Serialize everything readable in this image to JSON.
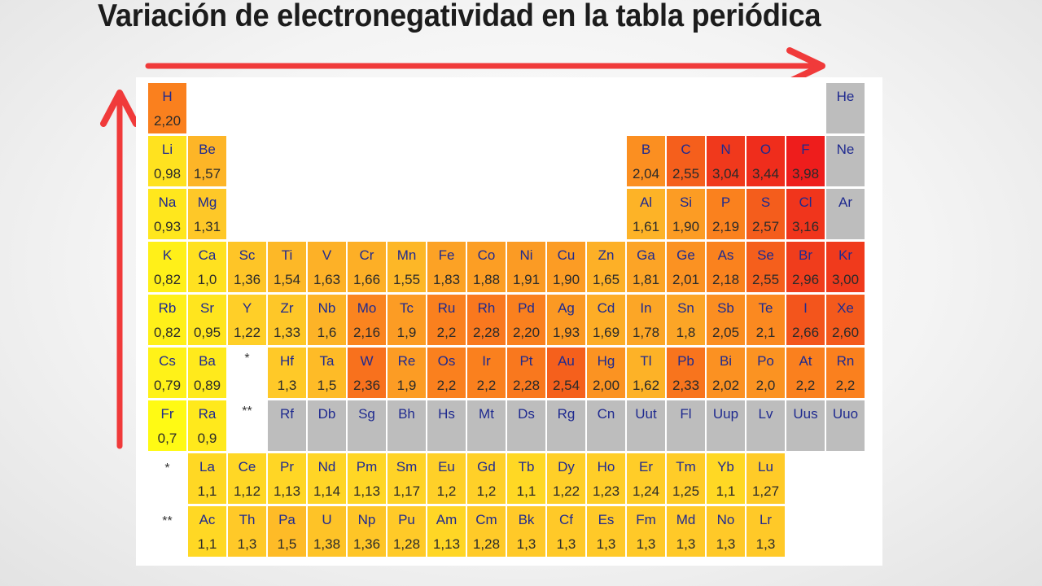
{
  "title": "Variación  de electronegatividad  en la tabla periódica",
  "colors": {
    "arrow": "#f03a3a",
    "noble": "#bdbdbd",
    "title": "#1c1c1c"
  },
  "markers": {
    "lanthanide": "*",
    "actinide": "**"
  },
  "chart_data": {
    "type": "table",
    "title": "Variación  de electronegatividad  en la tabla periódica",
    "elements": [
      {
        "s": "H",
        "v": "2,20",
        "r": 1,
        "c": 1
      },
      {
        "s": "He",
        "v": "",
        "r": 1,
        "c": 18
      },
      {
        "s": "Li",
        "v": "0,98",
        "r": 2,
        "c": 1
      },
      {
        "s": "Be",
        "v": "1,57",
        "r": 2,
        "c": 2
      },
      {
        "s": "B",
        "v": "2,04",
        "r": 2,
        "c": 13
      },
      {
        "s": "C",
        "v": "2,55",
        "r": 2,
        "c": 14
      },
      {
        "s": "N",
        "v": "3,04",
        "r": 2,
        "c": 15
      },
      {
        "s": "O",
        "v": "3,44",
        "r": 2,
        "c": 16
      },
      {
        "s": "F",
        "v": "3,98",
        "r": 2,
        "c": 17
      },
      {
        "s": "Ne",
        "v": "",
        "r": 2,
        "c": 18
      },
      {
        "s": "Na",
        "v": "0,93",
        "r": 3,
        "c": 1
      },
      {
        "s": "Mg",
        "v": "1,31",
        "r": 3,
        "c": 2
      },
      {
        "s": "Al",
        "v": "1,61",
        "r": 3,
        "c": 13
      },
      {
        "s": "Si",
        "v": "1,90",
        "r": 3,
        "c": 14
      },
      {
        "s": "P",
        "v": "2,19",
        "r": 3,
        "c": 15
      },
      {
        "s": "S",
        "v": "2,57",
        "r": 3,
        "c": 16
      },
      {
        "s": "Cl",
        "v": "3,16",
        "r": 3,
        "c": 17
      },
      {
        "s": "Ar",
        "v": "",
        "r": 3,
        "c": 18
      },
      {
        "s": "K",
        "v": "0,82",
        "r": 4,
        "c": 1
      },
      {
        "s": "Ca",
        "v": "1,0",
        "r": 4,
        "c": 2
      },
      {
        "s": "Sc",
        "v": "1,36",
        "r": 4,
        "c": 3
      },
      {
        "s": "Ti",
        "v": "1,54",
        "r": 4,
        "c": 4
      },
      {
        "s": "V",
        "v": "1,63",
        "r": 4,
        "c": 5
      },
      {
        "s": "Cr",
        "v": "1,66",
        "r": 4,
        "c": 6
      },
      {
        "s": "Mn",
        "v": "1,55",
        "r": 4,
        "c": 7
      },
      {
        "s": "Fe",
        "v": "1,83",
        "r": 4,
        "c": 8
      },
      {
        "s": "Co",
        "v": "1,88",
        "r": 4,
        "c": 9
      },
      {
        "s": "Ni",
        "v": "1,91",
        "r": 4,
        "c": 10
      },
      {
        "s": "Cu",
        "v": "1,90",
        "r": 4,
        "c": 11
      },
      {
        "s": "Zn",
        "v": "1,65",
        "r": 4,
        "c": 12
      },
      {
        "s": "Ga",
        "v": "1,81",
        "r": 4,
        "c": 13
      },
      {
        "s": "Ge",
        "v": "2,01",
        "r": 4,
        "c": 14
      },
      {
        "s": "As",
        "v": "2,18",
        "r": 4,
        "c": 15
      },
      {
        "s": "Se",
        "v": "2,55",
        "r": 4,
        "c": 16
      },
      {
        "s": "Br",
        "v": "2,96",
        "r": 4,
        "c": 17
      },
      {
        "s": "Kr",
        "v": "3,00",
        "r": 4,
        "c": 18
      },
      {
        "s": "Rb",
        "v": "0,82",
        "r": 5,
        "c": 1
      },
      {
        "s": "Sr",
        "v": "0,95",
        "r": 5,
        "c": 2
      },
      {
        "s": "Y",
        "v": "1,22",
        "r": 5,
        "c": 3
      },
      {
        "s": "Zr",
        "v": "1,33",
        "r": 5,
        "c": 4
      },
      {
        "s": "Nb",
        "v": "1,6",
        "r": 5,
        "c": 5
      },
      {
        "s": "Mo",
        "v": "2,16",
        "r": 5,
        "c": 6
      },
      {
        "s": "Tc",
        "v": "1,9",
        "r": 5,
        "c": 7
      },
      {
        "s": "Ru",
        "v": "2,2",
        "r": 5,
        "c": 8
      },
      {
        "s": "Rh",
        "v": "2,28",
        "r": 5,
        "c": 9
      },
      {
        "s": "Pd",
        "v": "2,20",
        "r": 5,
        "c": 10
      },
      {
        "s": "Ag",
        "v": "1,93",
        "r": 5,
        "c": 11
      },
      {
        "s": "Cd",
        "v": "1,69",
        "r": 5,
        "c": 12
      },
      {
        "s": "In",
        "v": "1,78",
        "r": 5,
        "c": 13
      },
      {
        "s": "Sn",
        "v": "1,8",
        "r": 5,
        "c": 14
      },
      {
        "s": "Sb",
        "v": "2,05",
        "r": 5,
        "c": 15
      },
      {
        "s": "Te",
        "v": "2,1",
        "r": 5,
        "c": 16
      },
      {
        "s": "I",
        "v": "2,66",
        "r": 5,
        "c": 17
      },
      {
        "s": "Xe",
        "v": "2,60",
        "r": 5,
        "c": 18
      },
      {
        "s": "Cs",
        "v": "0,79",
        "r": 6,
        "c": 1
      },
      {
        "s": "Ba",
        "v": "0,89",
        "r": 6,
        "c": 2
      },
      {
        "s": "Hf",
        "v": "1,3",
        "r": 6,
        "c": 4
      },
      {
        "s": "Ta",
        "v": "1,5",
        "r": 6,
        "c": 5
      },
      {
        "s": "W",
        "v": "2,36",
        "r": 6,
        "c": 6
      },
      {
        "s": "Re",
        "v": "1,9",
        "r": 6,
        "c": 7
      },
      {
        "s": "Os",
        "v": "2,2",
        "r": 6,
        "c": 8
      },
      {
        "s": "Ir",
        "v": "2,2",
        "r": 6,
        "c": 9
      },
      {
        "s": "Pt",
        "v": "2,28",
        "r": 6,
        "c": 10
      },
      {
        "s": "Au",
        "v": "2,54",
        "r": 6,
        "c": 11
      },
      {
        "s": "Hg",
        "v": "2,00",
        "r": 6,
        "c": 12
      },
      {
        "s": "Tl",
        "v": "1,62",
        "r": 6,
        "c": 13
      },
      {
        "s": "Pb",
        "v": "2,33",
        "r": 6,
        "c": 14
      },
      {
        "s": "Bi",
        "v": "2,02",
        "r": 6,
        "c": 15
      },
      {
        "s": "Po",
        "v": "2,0",
        "r": 6,
        "c": 16
      },
      {
        "s": "At",
        "v": "2,2",
        "r": 6,
        "c": 17
      },
      {
        "s": "Rn",
        "v": "2,2",
        "r": 6,
        "c": 18
      },
      {
        "s": "Fr",
        "v": "0,7",
        "r": 7,
        "c": 1
      },
      {
        "s": "Ra",
        "v": "0,9",
        "r": 7,
        "c": 2
      },
      {
        "s": "Rf",
        "v": "",
        "r": 7,
        "c": 4
      },
      {
        "s": "Db",
        "v": "",
        "r": 7,
        "c": 5
      },
      {
        "s": "Sg",
        "v": "",
        "r": 7,
        "c": 6
      },
      {
        "s": "Bh",
        "v": "",
        "r": 7,
        "c": 7
      },
      {
        "s": "Hs",
        "v": "",
        "r": 7,
        "c": 8
      },
      {
        "s": "Mt",
        "v": "",
        "r": 7,
        "c": 9
      },
      {
        "s": "Ds",
        "v": "",
        "r": 7,
        "c": 10
      },
      {
        "s": "Rg",
        "v": "",
        "r": 7,
        "c": 11
      },
      {
        "s": "Cn",
        "v": "",
        "r": 7,
        "c": 12
      },
      {
        "s": "Uut",
        "v": "",
        "r": 7,
        "c": 13
      },
      {
        "s": "Fl",
        "v": "",
        "r": 7,
        "c": 14
      },
      {
        "s": "Uup",
        "v": "",
        "r": 7,
        "c": 15
      },
      {
        "s": "Lv",
        "v": "",
        "r": 7,
        "c": 16
      },
      {
        "s": "Uus",
        "v": "",
        "r": 7,
        "c": 17
      },
      {
        "s": "Uuo",
        "v": "",
        "r": 7,
        "c": 18
      },
      {
        "s": "La",
        "v": "1,1",
        "r": 8,
        "c": 2
      },
      {
        "s": "Ce",
        "v": "1,12",
        "r": 8,
        "c": 3
      },
      {
        "s": "Pr",
        "v": "1,13",
        "r": 8,
        "c": 4
      },
      {
        "s": "Nd",
        "v": "1,14",
        "r": 8,
        "c": 5
      },
      {
        "s": "Pm",
        "v": "1,13",
        "r": 8,
        "c": 6
      },
      {
        "s": "Sm",
        "v": "1,17",
        "r": 8,
        "c": 7
      },
      {
        "s": "Eu",
        "v": "1,2",
        "r": 8,
        "c": 8
      },
      {
        "s": "Gd",
        "v": "1,2",
        "r": 8,
        "c": 9
      },
      {
        "s": "Tb",
        "v": "1,1",
        "r": 8,
        "c": 10
      },
      {
        "s": "Dy",
        "v": "1,22",
        "r": 8,
        "c": 11
      },
      {
        "s": "Ho",
        "v": "1,23",
        "r": 8,
        "c": 12
      },
      {
        "s": "Er",
        "v": "1,24",
        "r": 8,
        "c": 13
      },
      {
        "s": "Tm",
        "v": "1,25",
        "r": 8,
        "c": 14
      },
      {
        "s": "Yb",
        "v": "1,1",
        "r": 8,
        "c": 15
      },
      {
        "s": "Lu",
        "v": "1,27",
        "r": 8,
        "c": 16
      },
      {
        "s": "Ac",
        "v": "1,1",
        "r": 9,
        "c": 2
      },
      {
        "s": "Th",
        "v": "1,3",
        "r": 9,
        "c": 3
      },
      {
        "s": "Pa",
        "v": "1,5",
        "r": 9,
        "c": 4
      },
      {
        "s": "U",
        "v": "1,38",
        "r": 9,
        "c": 5
      },
      {
        "s": "Np",
        "v": "1,36",
        "r": 9,
        "c": 6
      },
      {
        "s": "Pu",
        "v": "1,28",
        "r": 9,
        "c": 7
      },
      {
        "s": "Am",
        "v": "1,13",
        "r": 9,
        "c": 8
      },
      {
        "s": "Cm",
        "v": "1,28",
        "r": 9,
        "c": 9
      },
      {
        "s": "Bk",
        "v": "1,3",
        "r": 9,
        "c": 10
      },
      {
        "s": "Cf",
        "v": "1,3",
        "r": 9,
        "c": 11
      },
      {
        "s": "Es",
        "v": "1,3",
        "r": 9,
        "c": 12
      },
      {
        "s": "Fm",
        "v": "1,3",
        "r": 9,
        "c": 13
      },
      {
        "s": "Md",
        "v": "1,3",
        "r": 9,
        "c": 14
      },
      {
        "s": "No",
        "v": "1,3",
        "r": 9,
        "c": 15
      },
      {
        "s": "Lr",
        "v": "1,3",
        "r": 9,
        "c": 16
      }
    ]
  }
}
